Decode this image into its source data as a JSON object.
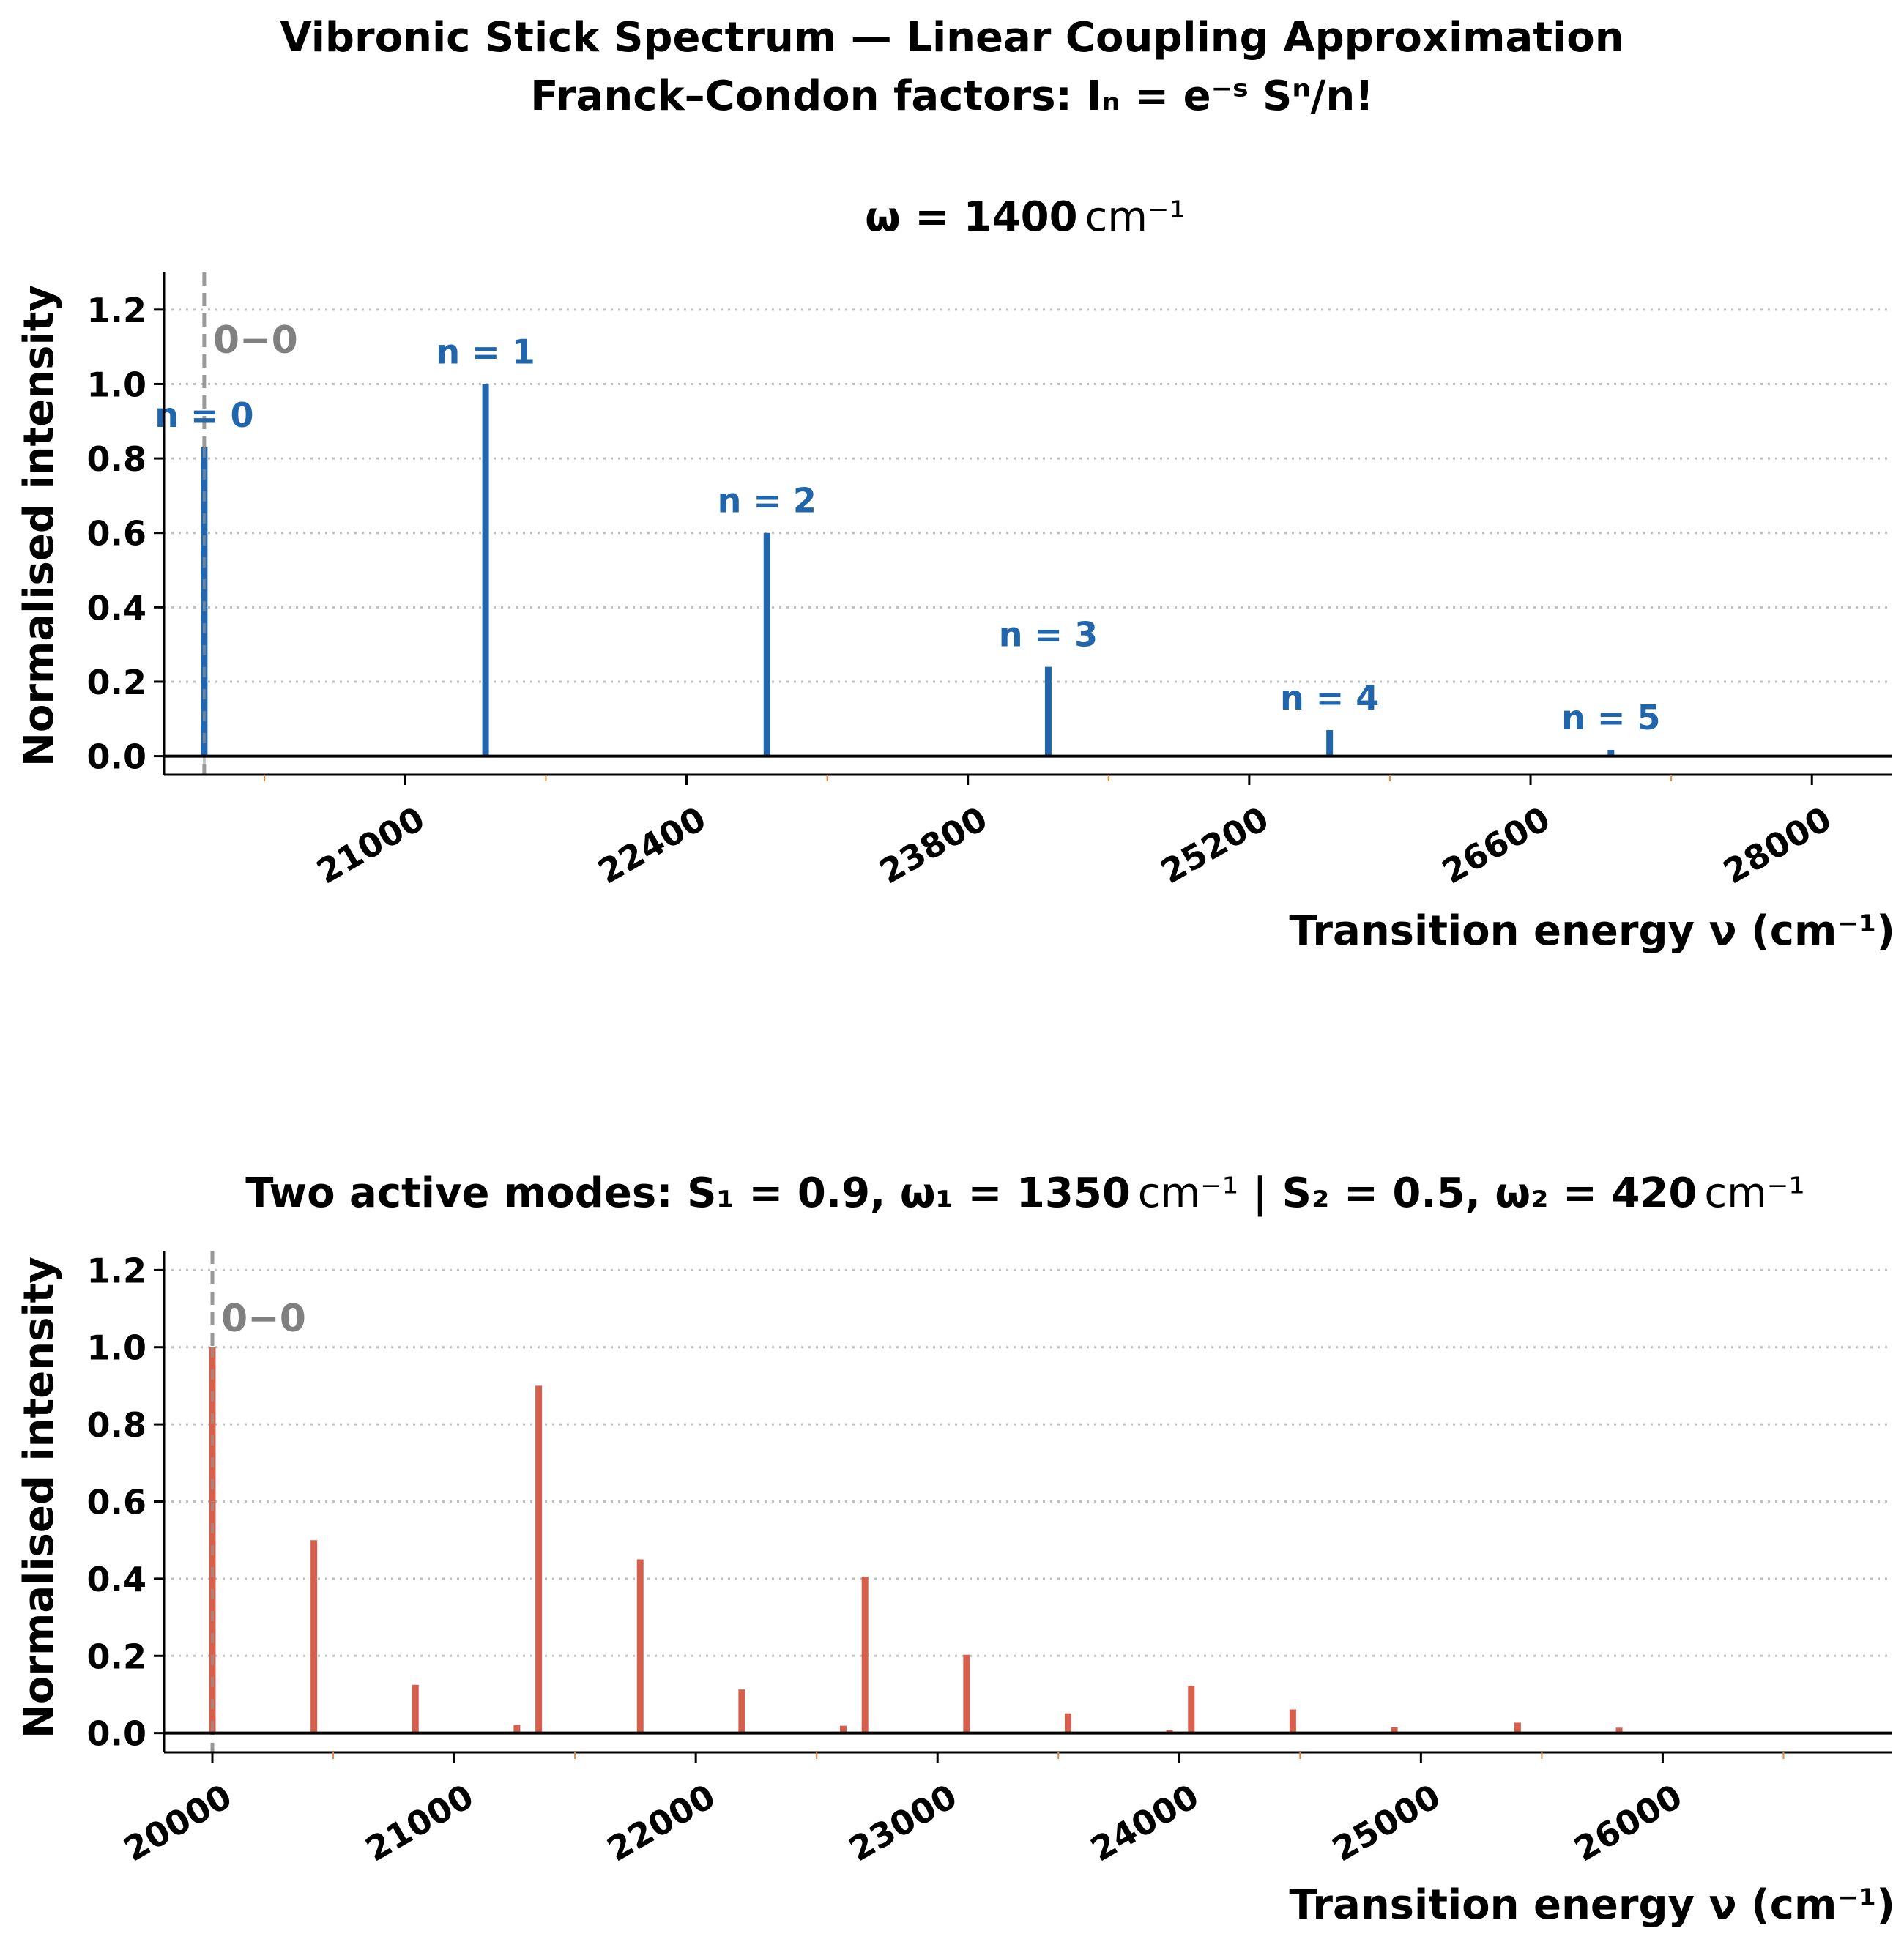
{
  "figure": {
    "title_line1": "Vibronic Stick Spectrum — Linear Coupling Approximation",
    "title_line2_prefix": "Franck–Condon factors: ",
    "title_line2_formula": "Iₙ = e⁻ˢ Sⁿ/n!"
  },
  "colors": {
    "panel1_sticks": "#2166ac",
    "panel2_sticks": "#d6604d",
    "zero_zero_line": "#999999",
    "zero_zero_text": "#808080",
    "grid": "#c0c0c0",
    "minor_ticks": "#e08a3c"
  },
  "chart_data": [
    {
      "type": "bar",
      "title_prefix": "ω = 1400",
      "title_unit": "cm⁻¹",
      "xlabel": "Transition energy ν (cm⁻¹)",
      "ylabel": "Normalised intensity",
      "xlim": [
        19800,
        28400
      ],
      "ylim": [
        -0.05,
        1.3
      ],
      "xticks": [
        21000,
        22400,
        23800,
        25200,
        26600,
        28000
      ],
      "xtick_labels": [
        "21000",
        "22400",
        "23800",
        "25200",
        "26600",
        "28000"
      ],
      "yticks": [
        0.0,
        0.2,
        0.4,
        0.6,
        0.8,
        1.0,
        1.2
      ],
      "ytick_labels": [
        "0.0",
        "0.2",
        "0.4",
        "0.6",
        "0.8",
        "1.0",
        "1.2"
      ],
      "grid": "horizontal dotted",
      "zero_zero": {
        "x": 20000,
        "label": "0−0"
      },
      "points": [
        {
          "x": 20000,
          "y": 0.83,
          "label": "n = 0"
        },
        {
          "x": 21400,
          "y": 1.0,
          "label": "n = 1"
        },
        {
          "x": 22800,
          "y": 0.6,
          "label": "n = 2"
        },
        {
          "x": 24200,
          "y": 0.24,
          "label": "n = 3"
        },
        {
          "x": 25600,
          "y": 0.07,
          "label": "n = 4"
        },
        {
          "x": 27000,
          "y": 0.017,
          "label": "n = 5"
        }
      ]
    },
    {
      "type": "bar",
      "title_prefix": "Two active modes: S₁ = 0.9, ω₁ = 1350",
      "title_mid": " | S₂ = 0.5, ω₂ = 420",
      "title_unit": "cm⁻¹",
      "xlabel": "Transition energy ν (cm⁻¹)",
      "ylabel": "Normalised intensity",
      "xlim": [
        19800,
        26950
      ],
      "ylim": [
        -0.05,
        1.25
      ],
      "xticks": [
        20000,
        21000,
        22000,
        23000,
        24000,
        25000,
        26000
      ],
      "xtick_labels": [
        "20000",
        "21000",
        "22000",
        "23000",
        "24000",
        "25000",
        "26000"
      ],
      "yticks": [
        0.0,
        0.2,
        0.4,
        0.6,
        0.8,
        1.0,
        1.2
      ],
      "ytick_labels": [
        "0.0",
        "0.2",
        "0.4",
        "0.6",
        "0.8",
        "1.0",
        "1.2"
      ],
      "grid": "horizontal dotted",
      "zero_zero": {
        "x": 20000,
        "label": "0−0"
      },
      "points": [
        {
          "x": 20000,
          "y": 1.0
        },
        {
          "x": 20420,
          "y": 0.5
        },
        {
          "x": 20840,
          "y": 0.125
        },
        {
          "x": 21260,
          "y": 0.021
        },
        {
          "x": 21350,
          "y": 0.9
        },
        {
          "x": 21770,
          "y": 0.45
        },
        {
          "x": 22190,
          "y": 0.113
        },
        {
          "x": 22610,
          "y": 0.019
        },
        {
          "x": 22700,
          "y": 0.405
        },
        {
          "x": 23120,
          "y": 0.203
        },
        {
          "x": 23540,
          "y": 0.051
        },
        {
          "x": 23960,
          "y": 0.008
        },
        {
          "x": 24050,
          "y": 0.122
        },
        {
          "x": 24470,
          "y": 0.061
        },
        {
          "x": 24890,
          "y": 0.015
        },
        {
          "x": 25400,
          "y": 0.027
        },
        {
          "x": 25820,
          "y": 0.014
        }
      ]
    }
  ]
}
